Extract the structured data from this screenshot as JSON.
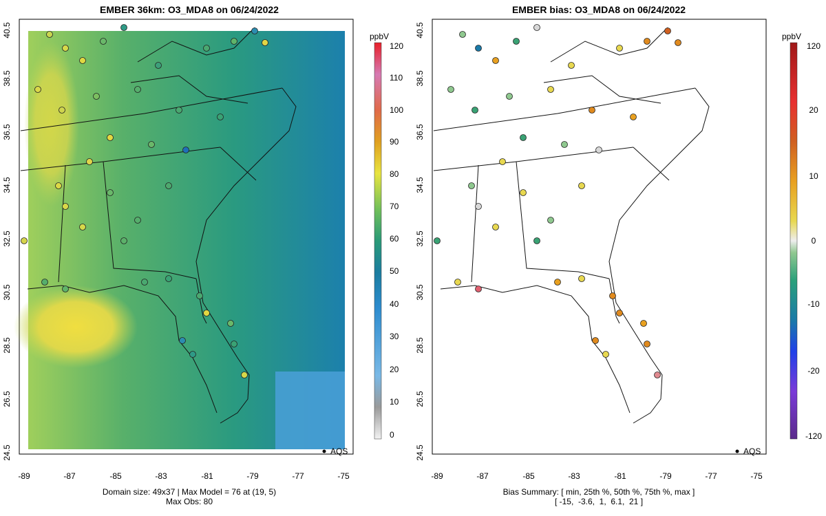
{
  "left_panel": {
    "title": "EMBER 36km: O3_MDA8 on 06/24/2022",
    "footer_line1": "Domain size: 49x37 | Max Model = 76 at (19, 5)",
    "footer_line2": "Max Obs: 80",
    "legend_point_label": "AQS",
    "colorbar_unit": "ppbV",
    "colorbar_ticks": [
      "0",
      "10",
      "20",
      "30",
      "40",
      "50",
      "60",
      "70",
      "80",
      "90",
      "100",
      "110",
      "120"
    ]
  },
  "right_panel": {
    "title": "EMBER bias: O3_MDA8 on 06/24/2022",
    "footer_line1": "Bias Summary: [ min, 25th %, 50th %, 75th %, max ]",
    "footer_line2": "[ -15,  -3.6,  1,  6.1,  21 ]",
    "legend_point_label": "AQS",
    "colorbar_unit": "ppbV",
    "colorbar_ticks": [
      "-120",
      "-20",
      "-10",
      "0",
      "10",
      "20",
      "120"
    ]
  },
  "axes": {
    "x_ticks": [
      "-89",
      "-87",
      "-85",
      "-83",
      "-81",
      "-79",
      "-77",
      "-75"
    ],
    "y_ticks": [
      "24.5",
      "26.5",
      "28.5",
      "30.5",
      "32.5",
      "34.5",
      "36.5",
      "38.5",
      "40.5"
    ]
  },
  "colors": {
    "model_high": "#e8de4a",
    "model_mid": "#5cb36a",
    "model_low": "#1f7fb4",
    "bias_positive": "#e08a1e",
    "bias_negative": "#3aa670",
    "bias_neutral": "#d9d9d9"
  },
  "chart_data": {
    "type": "heatmap",
    "title": "EMBER 36km: O3_MDA8 on 06/24/2022",
    "unit": "ppbV",
    "x_range": [
      -89.5,
      -74.5
    ],
    "y_range": [
      24.5,
      40.8
    ],
    "model_max": 76,
    "model_max_index": [
      19,
      5
    ],
    "obs_max": 80,
    "bias_summary": {
      "min": -15,
      "p25": -3.6,
      "p50": 1,
      "p75": 6.1,
      "max": 21
    },
    "colorbar_range": [
      0,
      120
    ],
    "bias_colorbar_range": [
      -120,
      120
    ]
  }
}
